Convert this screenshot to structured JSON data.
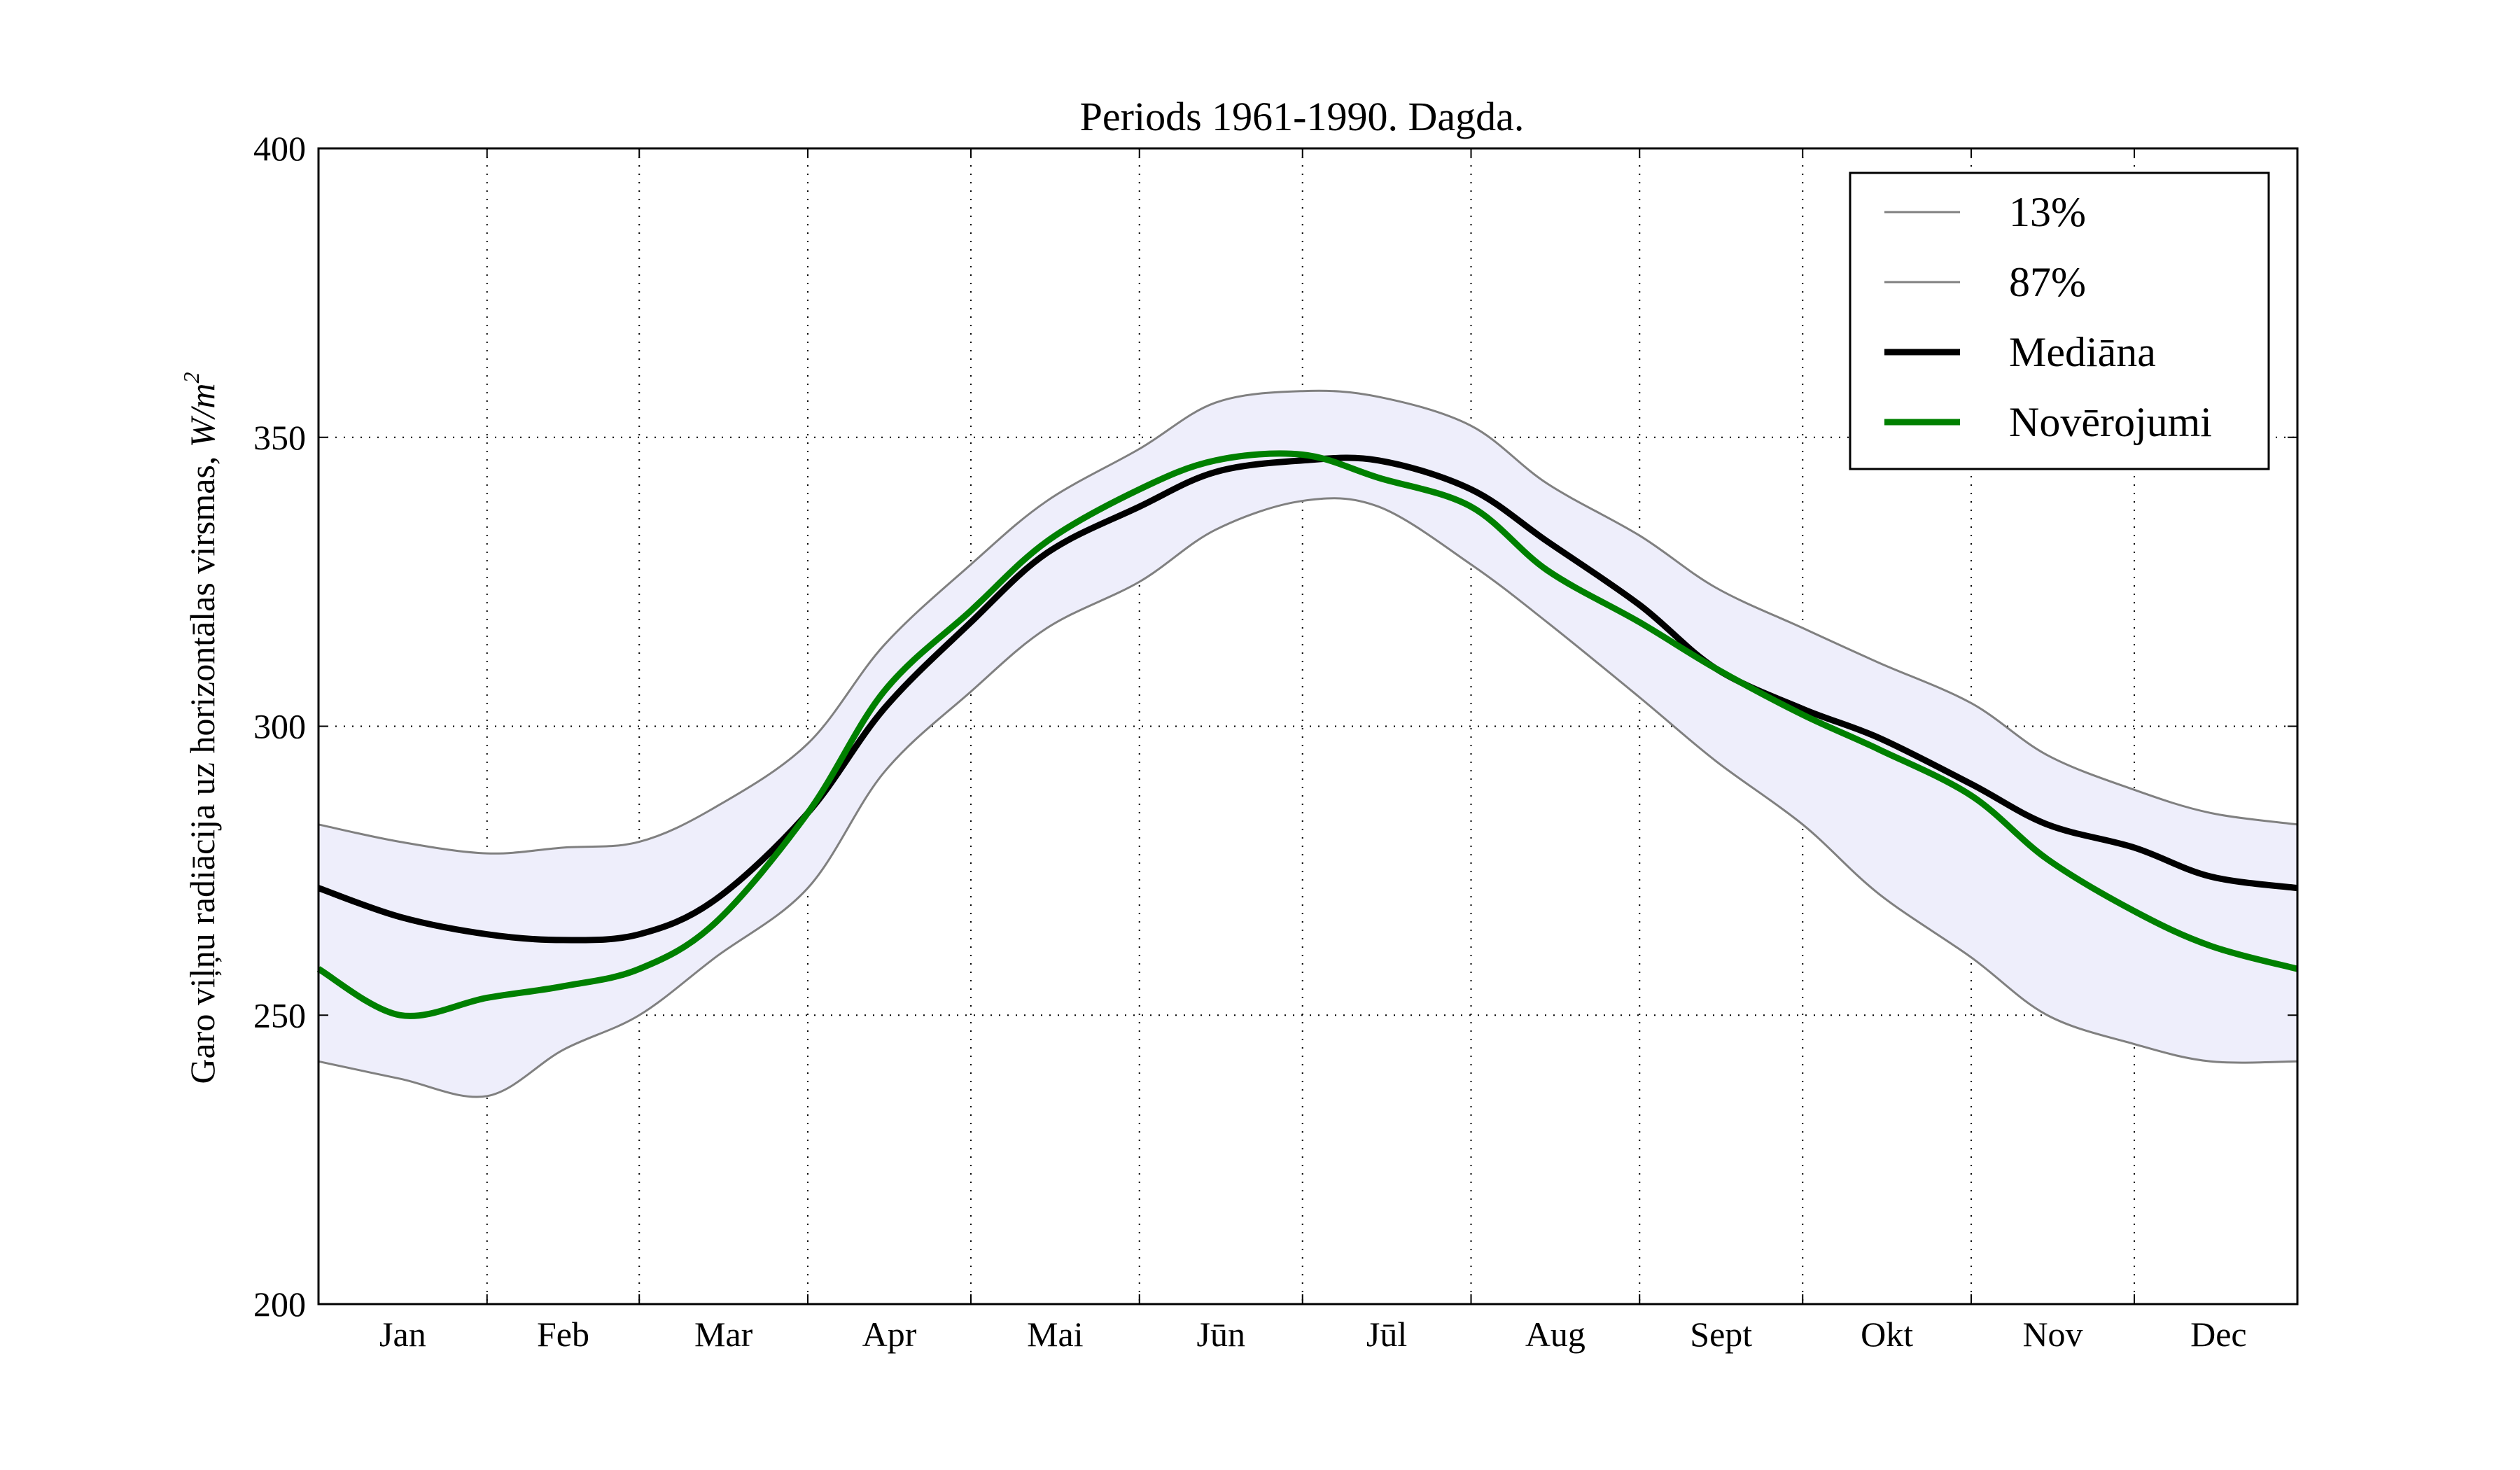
{
  "chart_data": {
    "type": "line",
    "title": "Periods 1961-1990. Dagda.",
    "ylabel_text": "Garo viļņu radiācija uz horizontālas virsmas, ",
    "ylabel_unit": "W/m",
    "ylabel_exp": "2",
    "xlabel": "",
    "ylim": [
      200,
      400
    ],
    "yticks": [
      "200",
      "250",
      "300",
      "350",
      "400"
    ],
    "ytick_values": [
      200,
      250,
      300,
      350,
      400
    ],
    "months": [
      "Jan",
      "Feb",
      "Mar",
      "Apr",
      "Mai",
      "Jūn",
      "Jūl",
      "Aug",
      "Sept",
      "Okt",
      "Nov",
      "Dec"
    ],
    "month_lengths": [
      31,
      28,
      31,
      30,
      31,
      30,
      31,
      31,
      30,
      31,
      30,
      31
    ],
    "x": [
      1,
      16,
      32,
      46,
      60,
      74,
      91,
      105,
      121,
      135,
      152,
      166,
      182,
      196,
      213,
      227,
      244,
      258,
      274,
      288,
      305,
      319,
      335,
      349,
      365
    ],
    "band_color": "#eeeefb",
    "grid": true,
    "legend_position": "top-right",
    "series": [
      {
        "name": "13%",
        "color": "#808080",
        "values": [
          242,
          239,
          236,
          244,
          250,
          260,
          272,
          292,
          306,
          317,
          325,
          334,
          339,
          338,
          328,
          318,
          305,
          294,
          283,
          271,
          260,
          250,
          245,
          242,
          242
        ]
      },
      {
        "name": "87%",
        "color": "#808080",
        "values": [
          283,
          280,
          278,
          279,
          280,
          286,
          297,
          314,
          328,
          339,
          348,
          356,
          358,
          357,
          352,
          342,
          333,
          324,
          317,
          311,
          304,
          295,
          289,
          285,
          283
        ]
      },
      {
        "name": "Mediāna",
        "color": "#000000",
        "values": [
          272,
          267,
          264,
          263,
          264,
          270,
          285,
          303,
          318,
          330,
          338,
          344,
          346,
          346,
          341,
          332,
          321,
          310,
          303,
          298,
          290,
          283,
          279,
          274,
          272
        ]
      },
      {
        "name": "Novērojumi",
        "color": "#008000",
        "values": [
          258,
          250,
          253,
          255,
          258,
          266,
          285,
          306,
          320,
          332,
          341,
          346,
          347,
          343,
          338,
          327,
          318,
          310,
          302,
          296,
          288,
          277,
          268,
          262,
          258
        ]
      }
    ]
  }
}
